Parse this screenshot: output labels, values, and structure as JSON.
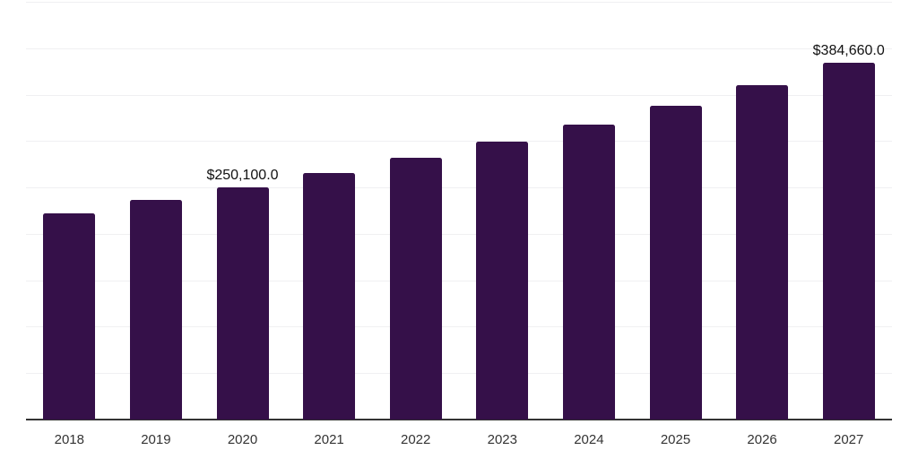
{
  "figure": {
    "background": "#ffffff"
  },
  "chart_data": {
    "type": "bar",
    "title": "",
    "xlabel": "",
    "ylabel": "",
    "categories": [
      "2018",
      "2019",
      "2020",
      "2021",
      "2022",
      "2023",
      "2024",
      "2025",
      "2026",
      "2027"
    ],
    "values": [
      222000,
      237000,
      250100,
      265500,
      281500,
      299000,
      318000,
      338000,
      360500,
      384660
    ],
    "value_labels": {
      "2020": "$250,100.0",
      "2027": "$384,660.0"
    },
    "ylim": [
      0,
      450000
    ],
    "gridline_step": 50000,
    "grid": true,
    "y_axis_tick_labels_visible": false,
    "legend": false,
    "colors": {
      "bar": "#351049",
      "grid_line": "#f0f0f2",
      "axis_line": "#333333",
      "value_label_text": "#111111",
      "tick_label_text": "#333333"
    }
  }
}
